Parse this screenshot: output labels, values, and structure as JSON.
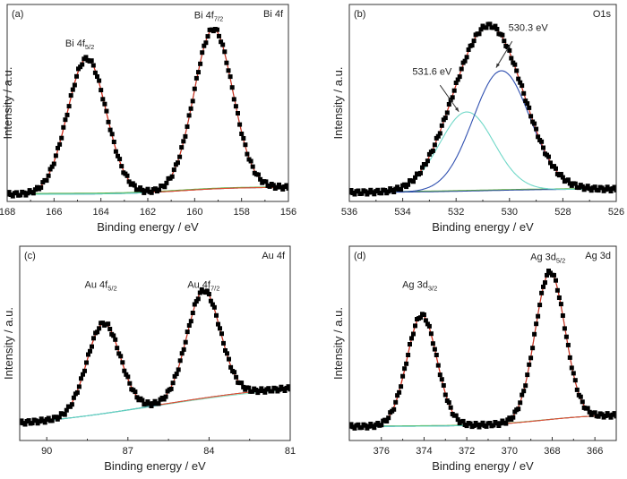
{
  "chart_data": [
    {
      "type": "line",
      "panel_label": "(a)",
      "element": "Bi 4f",
      "xlabel": "Binding energy / eV",
      "ylabel": "Intensity / a.u.",
      "xlim": [
        168,
        156
      ],
      "xticks": [
        168,
        166,
        164,
        162,
        160,
        158,
        156
      ],
      "xtick_labels": [
        "168",
        "166",
        "164",
        "162",
        "160",
        "158",
        "156"
      ],
      "ylim": [
        0,
        1
      ],
      "y_ticks_shown": false,
      "background_start": 0.04,
      "background_end": 0.0,
      "background_step_center": 160.6,
      "background_step_width": 1.2,
      "peaks": [
        {
          "label_main": "Bi 4f",
          "label_sub": "5/2",
          "label_x": 164.9,
          "label_y": 0.84,
          "center": 164.6,
          "height": 0.77,
          "fwhm": 1.95,
          "fit_color": "#e05030"
        },
        {
          "label_main": "Bi 4f",
          "label_sub": "7/2",
          "label_x": 159.4,
          "label_y": 1.0,
          "center": 159.2,
          "height": 0.91,
          "fwhm": 1.95,
          "fit_color": "#60d4c0"
        }
      ],
      "series": [
        {
          "name": "Experimental",
          "color": "#000000"
        },
        {
          "name": "Envelope",
          "color": "#d03020"
        },
        {
          "name": "Background",
          "color": "#3050a0"
        },
        {
          "name": "Baseline",
          "color": "#60b040"
        }
      ],
      "annotations": []
    },
    {
      "type": "line",
      "panel_label": "(b)",
      "element": "O1s",
      "xlabel": "Binding energy / eV",
      "ylabel": "Intensity / a.u.",
      "xlim": [
        536,
        526
      ],
      "xticks": [
        536,
        534,
        532,
        530,
        528,
        526
      ],
      "xtick_labels": [
        "536",
        "534",
        "532",
        "530",
        "528",
        "526"
      ],
      "ylim": [
        0,
        1
      ],
      "y_ticks_shown": false,
      "background_start": 0.03,
      "background_end": 0.01,
      "background_step_center": 531.0,
      "background_step_width": 1.5,
      "peaks": [
        {
          "label_main": "531.6 eV",
          "label_sub": "",
          "label_x": 532.9,
          "label_y": 0.68,
          "center": 531.6,
          "height": 0.45,
          "fwhm": 2.4,
          "fit_color": "#70d8c8"
        },
        {
          "label_main": "530.3 eV",
          "label_sub": "",
          "label_x": 529.3,
          "label_y": 0.93,
          "center": 530.3,
          "height": 0.68,
          "fwhm": 2.5,
          "fit_color": "#3050b0"
        }
      ],
      "series": [
        {
          "name": "Experimental",
          "color": "#000000"
        },
        {
          "name": "Envelope",
          "color": "#d03020"
        },
        {
          "name": "Baseline",
          "color": "#60b040"
        }
      ],
      "annotations": [
        {
          "text": "531.6 eV",
          "arrow_from": [
            532.6,
            0.62
          ],
          "arrow_to": [
            531.9,
            0.47
          ]
        },
        {
          "text": "530.3 eV",
          "arrow_from": [
            529.9,
            0.87
          ],
          "arrow_to": [
            530.5,
            0.72
          ]
        }
      ]
    },
    {
      "type": "line",
      "panel_label": "(c)",
      "element": "Au 4f",
      "xlabel": "Binding energy / eV",
      "ylabel": "Intensity / a.u.",
      "xlim": [
        91,
        81
      ],
      "xticks": [
        90,
        87,
        84,
        81
      ],
      "xtick_labels": [
        "90",
        "87",
        "84",
        "81"
      ],
      "ylim": [
        0,
        1
      ],
      "y_ticks_shown": false,
      "background_start": 0.3,
      "background_end": 0.02,
      "background_step_center": 86.0,
      "background_step_width": 2.8,
      "peaks": [
        {
          "label_main": "Au 4f",
          "label_sub": "5/2",
          "label_x": 88.0,
          "label_y": 0.84,
          "center": 87.9,
          "height": 0.52,
          "fwhm": 1.45,
          "fit_color": "#e05030"
        },
        {
          "label_main": "Au 4f",
          "label_sub": "7/2",
          "label_x": 84.2,
          "label_y": 0.84,
          "center": 84.2,
          "height": 0.62,
          "fwhm": 1.45,
          "fit_color": "#60d4c0"
        }
      ],
      "series": [
        {
          "name": "Experimental",
          "color": "#000000"
        },
        {
          "name": "Envelope",
          "color": "#d03020"
        },
        {
          "name": "Background",
          "color": "#3050a0"
        },
        {
          "name": "Baseline",
          "color": "#90e0c0"
        }
      ],
      "annotations": []
    },
    {
      "type": "line",
      "panel_label": "(d)",
      "element": "Ag 3d",
      "xlabel": "Binding energy / eV",
      "ylabel": "Intensity / a.u.",
      "xlim": [
        377.5,
        365
      ],
      "xticks": [
        376,
        374,
        372,
        370,
        368,
        366
      ],
      "xtick_labels": [
        "376",
        "374",
        "372",
        "370",
        "368",
        "366"
      ],
      "ylim": [
        0,
        1
      ],
      "y_ticks_shown": false,
      "background_start": 0.11,
      "background_end": 0.04,
      "background_step_center": 368.5,
      "background_step_width": 1.4,
      "peaks": [
        {
          "label_main": "Ag 3d",
          "label_sub": "3/2",
          "label_x": 374.2,
          "label_y": 0.84,
          "center": 374.1,
          "height": 0.64,
          "fwhm": 1.65,
          "fit_color": "#e05030"
        },
        {
          "label_main": "Ag 3d",
          "label_sub": "5/2",
          "label_x": 368.2,
          "label_y": 1.0,
          "center": 368.1,
          "height": 0.85,
          "fwhm": 1.65,
          "fit_color": "#60d4c0"
        }
      ],
      "series": [
        {
          "name": "Experimental",
          "color": "#000000"
        },
        {
          "name": "Envelope",
          "color": "#d03020"
        },
        {
          "name": "Background",
          "color": "#3050a0"
        },
        {
          "name": "Baseline",
          "color": "#60b040"
        }
      ],
      "annotations": []
    }
  ]
}
